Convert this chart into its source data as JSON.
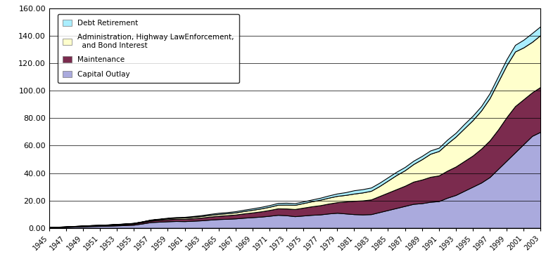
{
  "years": [
    1945,
    1946,
    1947,
    1948,
    1949,
    1950,
    1951,
    1952,
    1953,
    1954,
    1955,
    1956,
    1957,
    1958,
    1959,
    1960,
    1961,
    1962,
    1963,
    1964,
    1965,
    1966,
    1967,
    1968,
    1969,
    1970,
    1971,
    1972,
    1973,
    1974,
    1975,
    1976,
    1977,
    1978,
    1979,
    1980,
    1981,
    1982,
    1983,
    1984,
    1985,
    1986,
    1987,
    1988,
    1989,
    1990,
    1991,
    1992,
    1993,
    1994,
    1995,
    1996,
    1997,
    1998,
    1999,
    2000,
    2001,
    2002,
    2003
  ],
  "capital_outlay": [
    0.4,
    0.5,
    0.7,
    0.9,
    1.1,
    1.3,
    1.4,
    1.6,
    1.8,
    2.0,
    2.3,
    3.2,
    4.2,
    4.5,
    4.8,
    5.0,
    4.9,
    5.2,
    5.5,
    6.0,
    6.4,
    6.6,
    6.9,
    7.4,
    7.8,
    8.2,
    8.8,
    9.5,
    9.2,
    8.5,
    9.0,
    9.5,
    9.8,
    10.5,
    11.0,
    10.5,
    10.0,
    9.8,
    10.0,
    11.5,
    13.0,
    14.5,
    16.0,
    17.5,
    18.0,
    19.0,
    19.5,
    22.0,
    24.0,
    27.0,
    30.0,
    33.0,
    37.0,
    43.0,
    49.0,
    55.0,
    61.0,
    67.0,
    70.0
  ],
  "maintenance": [
    0.15,
    0.18,
    0.22,
    0.3,
    0.38,
    0.45,
    0.5,
    0.55,
    0.65,
    0.75,
    0.85,
    0.95,
    1.1,
    1.3,
    1.5,
    1.6,
    1.7,
    1.8,
    2.0,
    2.2,
    2.4,
    2.6,
    2.8,
    3.1,
    3.4,
    3.8,
    4.2,
    4.7,
    4.9,
    5.2,
    5.7,
    6.2,
    6.7,
    7.2,
    7.7,
    8.7,
    9.7,
    10.2,
    10.7,
    11.7,
    12.7,
    13.7,
    14.7,
    16.2,
    17.2,
    18.2,
    18.7,
    19.7,
    20.7,
    21.7,
    22.7,
    24.7,
    26.7,
    28.7,
    31.7,
    33.7,
    32.7,
    31.7,
    32.7
  ],
  "admin_highway": [
    0.08,
    0.09,
    0.11,
    0.13,
    0.15,
    0.18,
    0.22,
    0.26,
    0.3,
    0.34,
    0.38,
    0.45,
    0.55,
    0.65,
    0.75,
    0.85,
    0.95,
    1.05,
    1.15,
    1.25,
    1.35,
    1.45,
    1.55,
    1.75,
    1.95,
    2.15,
    2.35,
    2.65,
    2.85,
    3.05,
    3.35,
    3.65,
    4.0,
    4.3,
    4.6,
    4.8,
    5.3,
    5.8,
    6.3,
    7.3,
    8.8,
    10.3,
    11.3,
    12.8,
    14.8,
    16.8,
    17.8,
    19.8,
    21.8,
    23.8,
    25.8,
    27.8,
    30.8,
    34.8,
    37.8,
    39.8,
    37.8,
    36.8,
    37.8
  ],
  "debt_retirement": [
    0.04,
    0.05,
    0.05,
    0.06,
    0.07,
    0.08,
    0.08,
    0.09,
    0.1,
    0.11,
    0.12,
    0.16,
    0.2,
    0.24,
    0.32,
    0.4,
    0.48,
    0.56,
    0.64,
    0.72,
    0.8,
    0.8,
    0.88,
    0.96,
    1.04,
    1.12,
    1.2,
    1.28,
    1.36,
    1.2,
    1.2,
    1.28,
    1.44,
    1.6,
    1.76,
    2.0,
    2.4,
    2.4,
    2.4,
    2.4,
    2.4,
    2.4,
    2.4,
    2.4,
    2.4,
    2.4,
    2.4,
    2.8,
    2.8,
    3.2,
    3.2,
    3.2,
    3.6,
    4.0,
    4.4,
    4.8,
    5.6,
    6.4,
    6.4
  ],
  "color_capital": "#aaaadd",
  "color_maintenance": "#7b2b4e",
  "color_admin": "#ffffcc",
  "color_debt": "#aaeeff",
  "ylim": [
    0,
    160
  ],
  "yticks": [
    0.0,
    20.0,
    40.0,
    60.0,
    80.0,
    100.0,
    120.0,
    140.0,
    160.0
  ],
  "legend_labels": [
    "Debt Retirement",
    "Administration, Highway LawEnforcement,\n  and Bond Interest",
    "Maintenance",
    "Capital Outlay"
  ],
  "legend_colors": [
    "#aaeeff",
    "#ffffcc",
    "#7b2b4e",
    "#aaaadd"
  ],
  "background_color": "#ffffff"
}
